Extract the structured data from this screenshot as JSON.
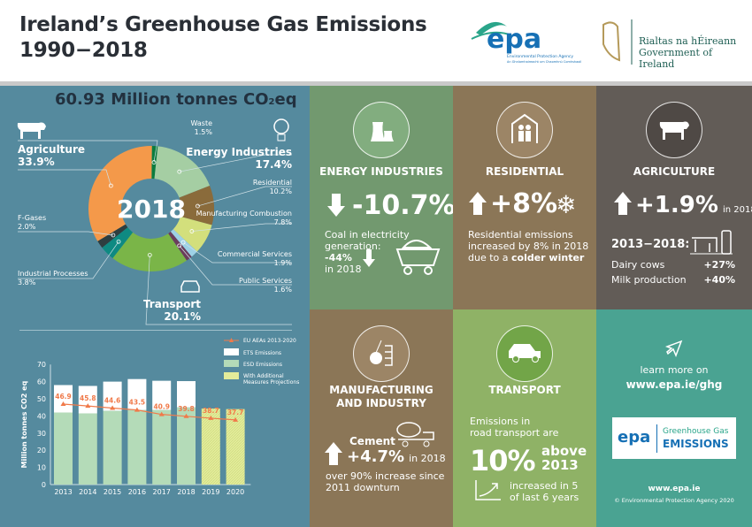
{
  "header": {
    "title_line1": "Ireland’s Greenhouse Gas Emissions",
    "title_line2": "1990−2018",
    "epa_logo": {
      "text": "epa",
      "sub1": "Environmental Protection Agency",
      "sub2": "An Ghníomhaireacht um Chaomhnú Comhshaoil"
    },
    "gov_logo": {
      "line1": "Rialtas na hÉireann",
      "line2": "Government of Ireland"
    }
  },
  "total": {
    "value": "60.93 Million tonnes CO",
    "sub": "2",
    "suffix": "eq"
  },
  "chart_data": [
    {
      "type": "pie",
      "center_label": "2018",
      "categories": [
        "Waste",
        "Energy Industries",
        "Residential",
        "Manufacturing Combustion",
        "Commercial Services",
        "Public Services",
        "Transport",
        "Industrial Processes",
        "F-Gases",
        "Agriculture"
      ],
      "values": [
        1.5,
        17.4,
        10.2,
        7.8,
        1.9,
        1.6,
        20.1,
        3.8,
        2.0,
        33.9
      ],
      "labels": [
        "1.5%",
        "17.4%",
        "10.2%",
        "7.8%",
        "1.9%",
        "1.6%",
        "20.1%",
        "3.8%",
        "2.0%",
        "33.9%"
      ],
      "colors": [
        "#0b7c3e",
        "#a5cea3",
        "#8a6b3b",
        "#d3df7c",
        "#9dd1e6",
        "#6b3d5c",
        "#7ab548",
        "#0e8a82",
        "#2e3e40",
        "#f4994a"
      ]
    },
    {
      "type": "bar",
      "stacked": true,
      "categories": [
        "2013",
        "2014",
        "2015",
        "2016",
        "2017",
        "2018",
        "2019",
        "2020"
      ],
      "ylabel": "Million tonnes CO2 eq",
      "ylim": [
        0,
        70
      ],
      "yticks": [
        0,
        10,
        20,
        30,
        40,
        50,
        60,
        70
      ],
      "series": [
        {
          "name": "ESD Emissions",
          "values": [
            42,
            41.5,
            43,
            43.5,
            43.5,
            45,
            null,
            null
          ],
          "color": "#b4dbb8"
        },
        {
          "name": "ETS Emissions",
          "values": [
            16,
            16,
            17,
            18,
            17,
            15.3,
            null,
            null
          ],
          "color": "#ffffff"
        },
        {
          "name": "With Additional Measures Projections",
          "values": [
            null,
            null,
            null,
            null,
            null,
            null,
            44.3,
            44
          ],
          "color": "#e3ec9a"
        },
        {
          "name": "EU AEAs 2013-2020",
          "type": "line",
          "values": [
            46.9,
            45.8,
            44.6,
            43.5,
            40.9,
            39.8,
            38.7,
            37.7
          ],
          "color": "#f07a4a"
        }
      ]
    }
  ],
  "panels": {
    "energy": {
      "title": "ENERGY INDUSTRIES",
      "change": "-10.7%",
      "text1": "Coal in electricity",
      "text2": "generation:",
      "text3": "-44%",
      "text4": "in 2018"
    },
    "residential": {
      "title": "RESIDENTIAL",
      "change": "+8%",
      "text1": "Residential emissions",
      "text2": "increased by 8% in 2018",
      "text3": "due to a ",
      "text3b": "colder winter"
    },
    "agriculture": {
      "title": "AGRICULTURE",
      "change": "+1.9%",
      "suffix": "in 2018",
      "period": "2013−2018:",
      "row1_label": "Dairy cows",
      "row1_value": "+27%",
      "row2_label": "Milk production",
      "row2_value": "+40%"
    },
    "manufacturing": {
      "title1": "MANUFACTURING",
      "title2": "AND INDUSTRY",
      "label": "Cement",
      "change": "+4.7%",
      "suffix": "in 2018",
      "text1": "over 90% increase since",
      "text2": "2011 downturn"
    },
    "transport": {
      "title": "TRANSPORT",
      "text1": "Emissions in",
      "text2": "road transport are",
      "big": "10%",
      "above": "above",
      "year": "2013",
      "text3": "increased in 5",
      "text4": "of last 6 years"
    },
    "learn": {
      "text1": "learn more on",
      "link": "www.epa.ie/ghg",
      "badge_epa": "epa",
      "badge1": "Greenhouse Gas",
      "badge2": "EMISSIONS",
      "site": "www.epa.ie",
      "copyright": "© Environmental Protection Agency 2020"
    }
  },
  "colors": {
    "energy": "#72996f",
    "residential": "#8b7657",
    "agriculture": "#625c57",
    "manufacturing": "#8b7657",
    "transport": "#8fb266",
    "learn": "#4aa392",
    "left": "#558a9e"
  }
}
